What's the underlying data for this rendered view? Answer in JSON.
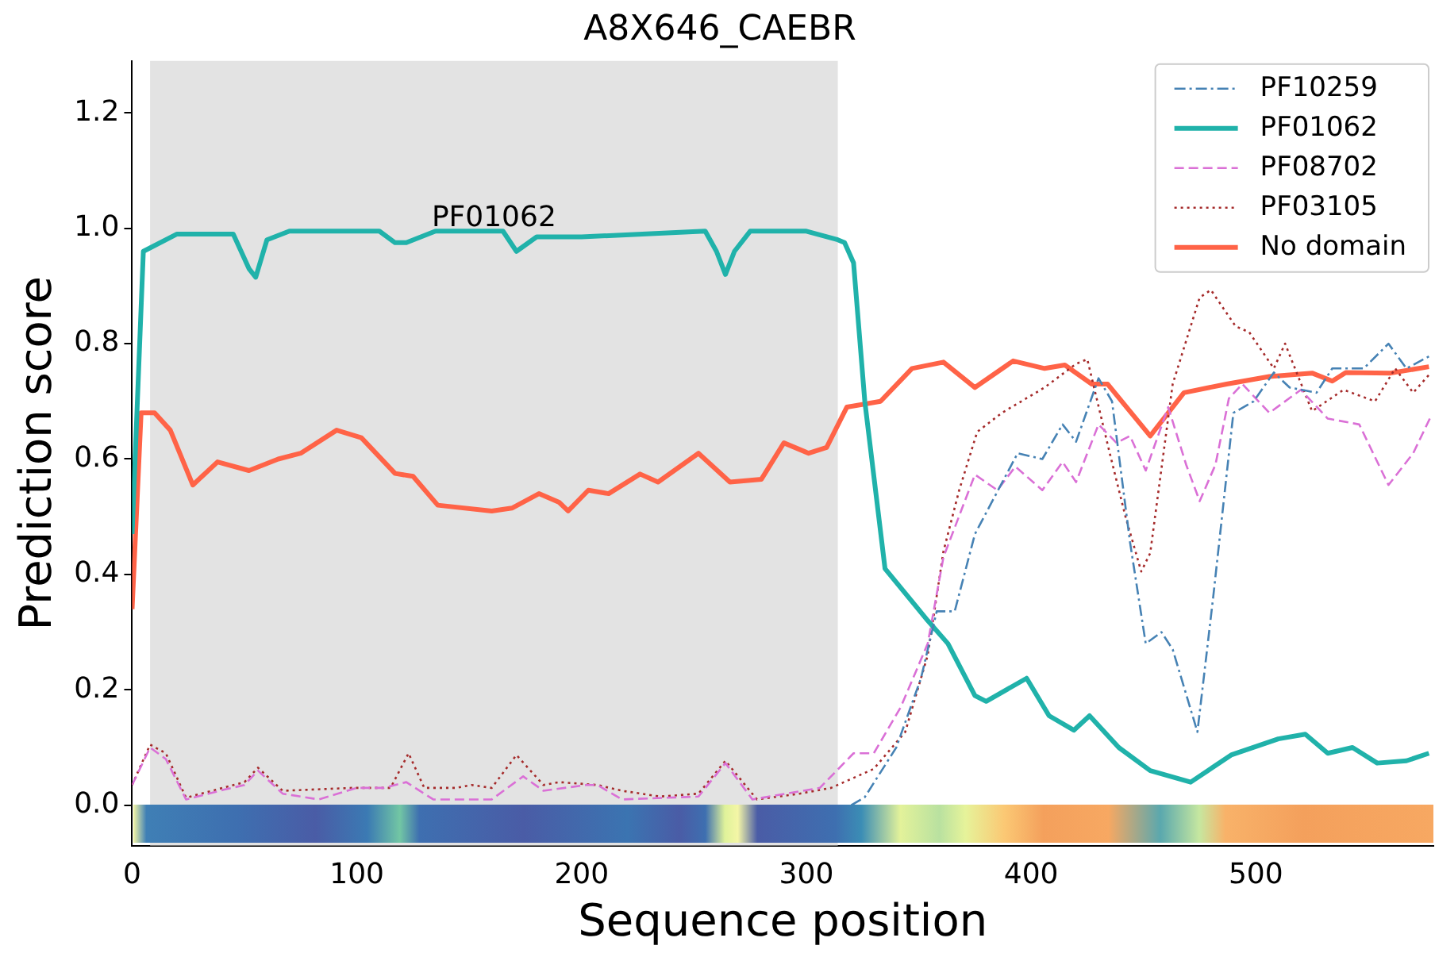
{
  "chart_data": {
    "type": "line",
    "title": "A8X646_CAEBR",
    "xlabel": "Sequence position",
    "ylabel": "Prediction score",
    "xlim": [
      0,
      579
    ],
    "ylim": [
      -0.07,
      1.29
    ],
    "xticks": [
      0,
      100,
      200,
      300,
      400,
      500
    ],
    "yticks": [
      {
        "value": 0,
        "label": "0.0"
      },
      {
        "value": 0.2,
        "label": "0.2"
      },
      {
        "value": 0.4,
        "label": "0.4"
      },
      {
        "value": 0.6,
        "label": "0.6"
      },
      {
        "value": 0.8,
        "label": "0.8"
      },
      {
        "value": 1.0,
        "label": "1.0"
      },
      {
        "value": 1.2,
        "label": "1.2"
      }
    ],
    "grid": false,
    "legend": "top right",
    "marker": "none",
    "bands": [
      {
        "axis": "x",
        "from": 8,
        "to": 314,
        "label": "PF01062",
        "color": "#e3e3e3"
      }
    ],
    "series": [
      {
        "name": "PF10259",
        "color": "#4682b4",
        "line_style": "dashdot",
        "x": [
          320,
          326,
          340,
          351,
          358,
          366,
          375,
          394,
          405,
          414,
          420,
          430,
          436,
          444,
          451,
          458,
          463,
          474,
          481,
          490,
          499,
          508,
          515,
          527,
          534,
          548,
          559,
          567,
          578
        ],
        "values": [
          0.0,
          0.014,
          0.1,
          0.22,
          0.336,
          0.336,
          0.47,
          0.61,
          0.6,
          0.66,
          0.63,
          0.74,
          0.7,
          0.456,
          0.28,
          0.3,
          0.27,
          0.127,
          0.36,
          0.68,
          0.7,
          0.75,
          0.724,
          0.715,
          0.757,
          0.757,
          0.8,
          0.757,
          0.78
        ]
      },
      {
        "name": "PF01062",
        "color": "#20b2aa",
        "line_style": "solid",
        "x": [
          0,
          5,
          20,
          45,
          52,
          55,
          60,
          70,
          110,
          117,
          122,
          135,
          165,
          171,
          180,
          200,
          255,
          260,
          264,
          268,
          275,
          300,
          314,
          317,
          321,
          326,
          335,
          354,
          363,
          375,
          380,
          398,
          408,
          419,
          426,
          439,
          453,
          471,
          489,
          510,
          522,
          532,
          543,
          554,
          567,
          577
        ],
        "values": [
          0.47,
          0.96,
          0.99,
          0.99,
          0.93,
          0.915,
          0.98,
          0.995,
          0.995,
          0.975,
          0.975,
          0.995,
          0.995,
          0.96,
          0.985,
          0.985,
          0.995,
          0.96,
          0.92,
          0.96,
          0.995,
          0.995,
          0.98,
          0.975,
          0.94,
          0.7,
          0.41,
          0.32,
          0.28,
          0.19,
          0.18,
          0.22,
          0.155,
          0.13,
          0.155,
          0.1,
          0.06,
          0.04,
          0.087,
          0.115,
          0.123,
          0.09,
          0.1,
          0.073,
          0.077,
          0.09
        ]
      },
      {
        "name": "PF08702",
        "color": "#da70d6",
        "line_style": "dashed",
        "x": [
          0,
          8,
          15,
          24,
          41,
          50,
          56,
          67,
          83,
          100,
          112,
          122,
          134,
          160,
          174,
          183,
          202,
          207,
          218,
          252,
          264,
          276,
          306,
          321,
          330,
          342,
          354,
          361,
          375,
          385,
          393,
          405,
          414,
          420,
          430,
          438,
          444,
          451,
          461,
          469,
          475,
          482,
          488,
          494,
          506,
          520,
          532,
          546,
          559,
          570,
          578
        ],
        "values": [
          0.035,
          0.1,
          0.08,
          0.01,
          0.027,
          0.035,
          0.06,
          0.02,
          0.01,
          0.03,
          0.03,
          0.04,
          0.01,
          0.01,
          0.05,
          0.025,
          0.035,
          0.035,
          0.01,
          0.015,
          0.073,
          0.01,
          0.03,
          0.09,
          0.09,
          0.17,
          0.28,
          0.43,
          0.573,
          0.546,
          0.587,
          0.546,
          0.595,
          0.56,
          0.66,
          0.628,
          0.64,
          0.58,
          0.69,
          0.59,
          0.527,
          0.59,
          0.705,
          0.73,
          0.68,
          0.72,
          0.67,
          0.66,
          0.555,
          0.61,
          0.675
        ]
      },
      {
        "name": "PF03105",
        "color": "#a52a2a",
        "line_style": "dotted",
        "x": [
          0,
          8,
          15,
          24,
          50,
          56,
          67,
          98,
          115,
          123,
          130,
          144,
          151,
          160,
          171,
          183,
          190,
          207,
          218,
          235,
          252,
          264,
          278,
          297,
          311,
          330,
          344,
          354,
          361,
          368,
          376,
          387,
          406,
          420,
          425,
          435,
          442,
          449,
          453,
          463,
          475,
          480,
          491,
          497,
          508,
          513,
          525,
          539,
          553,
          562,
          570,
          578
        ],
        "values": [
          0.035,
          0.105,
          0.09,
          0.013,
          0.04,
          0.065,
          0.025,
          0.03,
          0.03,
          0.09,
          0.03,
          0.03,
          0.035,
          0.03,
          0.087,
          0.035,
          0.04,
          0.035,
          0.025,
          0.015,
          0.02,
          0.077,
          0.01,
          0.02,
          0.03,
          0.063,
          0.127,
          0.26,
          0.44,
          0.546,
          0.647,
          0.68,
          0.724,
          0.765,
          0.773,
          0.61,
          0.5,
          0.405,
          0.437,
          0.73,
          0.88,
          0.893,
          0.83,
          0.82,
          0.757,
          0.8,
          0.683,
          0.72,
          0.7,
          0.757,
          0.715,
          0.75
        ]
      },
      {
        "name": "No domain",
        "color": "#ff6347",
        "line_style": "solid",
        "x": [
          0,
          4,
          10,
          17,
          27,
          38,
          52,
          65,
          75,
          91,
          102,
          117,
          125,
          136,
          160,
          169,
          181,
          190,
          194,
          203,
          212,
          226,
          234,
          252,
          266,
          280,
          290,
          301,
          309,
          318,
          333,
          347,
          361,
          375,
          392,
          406,
          415,
          427,
          434,
          453,
          468,
          487,
          506,
          525,
          534,
          540,
          560,
          577
        ],
        "values": [
          0.34,
          0.68,
          0.68,
          0.65,
          0.555,
          0.595,
          0.58,
          0.6,
          0.61,
          0.65,
          0.637,
          0.575,
          0.57,
          0.52,
          0.51,
          0.515,
          0.54,
          0.525,
          0.51,
          0.546,
          0.54,
          0.574,
          0.56,
          0.61,
          0.56,
          0.565,
          0.628,
          0.61,
          0.62,
          0.69,
          0.7,
          0.757,
          0.768,
          0.724,
          0.77,
          0.757,
          0.763,
          0.73,
          0.73,
          0.64,
          0.715,
          0.73,
          0.743,
          0.749,
          0.735,
          0.75,
          0.749,
          0.76
        ]
      }
    ]
  }
}
